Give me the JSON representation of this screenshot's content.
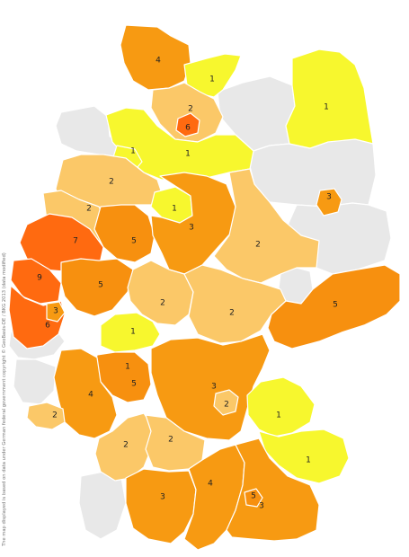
{
  "credit": "The map displayed is based on data under German federal government copyright © GeoBasis-DE / BKG 2013 (data modified)",
  "color_scale": {
    "none": "#e8e8e8",
    "1": "#f7f72e",
    "2": "#fbc868",
    "3": "#f79a12",
    "4": "#f79a12",
    "5": "#f7900f",
    "6": "#ff6a10",
    "7": "#ff6a10",
    "9": "#ff6a10"
  },
  "regions": [
    {
      "id": "schleswig-holstein-north",
      "value": "4"
    },
    {
      "id": "mecklenburg-west",
      "value": "1"
    },
    {
      "id": "mecklenburg-east",
      "value": "1"
    },
    {
      "id": "hamburg-area",
      "value": "2"
    },
    {
      "id": "hamburg-core",
      "value": "6"
    },
    {
      "id": "lower-saxony-north",
      "value": "1"
    },
    {
      "id": "lower-saxony-east",
      "value": "1"
    },
    {
      "id": "berlin",
      "value": "3"
    },
    {
      "id": "lower-saxony-west",
      "value": "2"
    },
    {
      "id": "hanover",
      "value": "1"
    },
    {
      "id": "westphalia-north",
      "value": "2"
    },
    {
      "id": "ruhr",
      "value": "7"
    },
    {
      "id": "westphalia-east",
      "value": "5"
    },
    {
      "id": "north-hesse-saxony-anhalt",
      "value": "3"
    },
    {
      "id": "saxony-anhalt",
      "value": "2"
    },
    {
      "id": "rhineland-north",
      "value": "9"
    },
    {
      "id": "cologne-bonn",
      "value": "5"
    },
    {
      "id": "hesse-north",
      "value": "2"
    },
    {
      "id": "thuringia",
      "value": "2"
    },
    {
      "id": "saxony",
      "value": "5"
    },
    {
      "id": "rhineland-south",
      "value": "6"
    },
    {
      "id": "koblenz",
      "value": "3"
    },
    {
      "id": "hesse-central",
      "value": "1"
    },
    {
      "id": "frankfurt",
      "value": "1"
    },
    {
      "id": "rhine-main",
      "value": "5"
    },
    {
      "id": "franconia",
      "value": "3"
    },
    {
      "id": "nuremberg",
      "value": "2"
    },
    {
      "id": "saarland-palatinate",
      "value": "4"
    },
    {
      "id": "saar",
      "value": "2"
    },
    {
      "id": "upper-palatinate",
      "value": "1"
    },
    {
      "id": "lower-bavaria",
      "value": "1"
    },
    {
      "id": "wuerttemberg-north",
      "value": "2"
    },
    {
      "id": "stuttgart",
      "value": "2"
    },
    {
      "id": "swabia",
      "value": "3"
    },
    {
      "id": "upper-bavaria-west",
      "value": "4"
    },
    {
      "id": "munich",
      "value": "5"
    },
    {
      "id": "upper-bavaria-east",
      "value": "3"
    }
  ]
}
